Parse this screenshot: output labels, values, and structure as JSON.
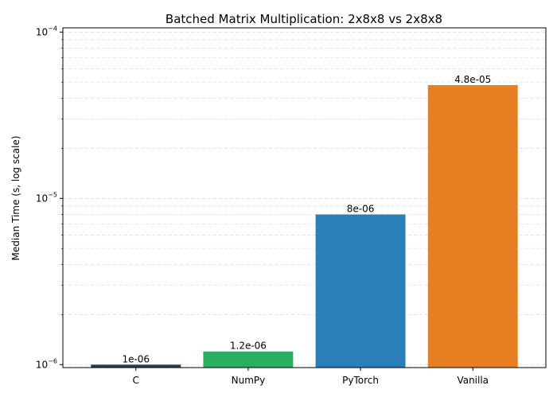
{
  "chart_data": {
    "type": "bar",
    "title": "Batched Matrix Multiplication: 2x8x8 vs 2x8x8",
    "xlabel": "",
    "ylabel": "Median Time (s, log scale)",
    "yscale": "log",
    "ylim": [
      9.6e-07,
      0.000106
    ],
    "grid": true,
    "legend": "none",
    "categories": [
      "C",
      "NumPy",
      "PyTorch",
      "Vanilla"
    ],
    "values": [
      1e-06,
      1.2e-06,
      8e-06,
      4.8e-05
    ],
    "data_labels": [
      "1e-06",
      "1.2e-06",
      "8e-06",
      "4.8e-05"
    ],
    "colors": [
      "#2c3e50",
      "#27ae60",
      "#2980b9",
      "#e67e22"
    ],
    "y_major_ticks": [
      {
        "value": 1e-06,
        "base": "10",
        "exp": "−6"
      },
      {
        "value": 1e-05,
        "base": "10",
        "exp": "−5"
      },
      {
        "value": 0.0001,
        "base": "10",
        "exp": "−4"
      }
    ]
  }
}
